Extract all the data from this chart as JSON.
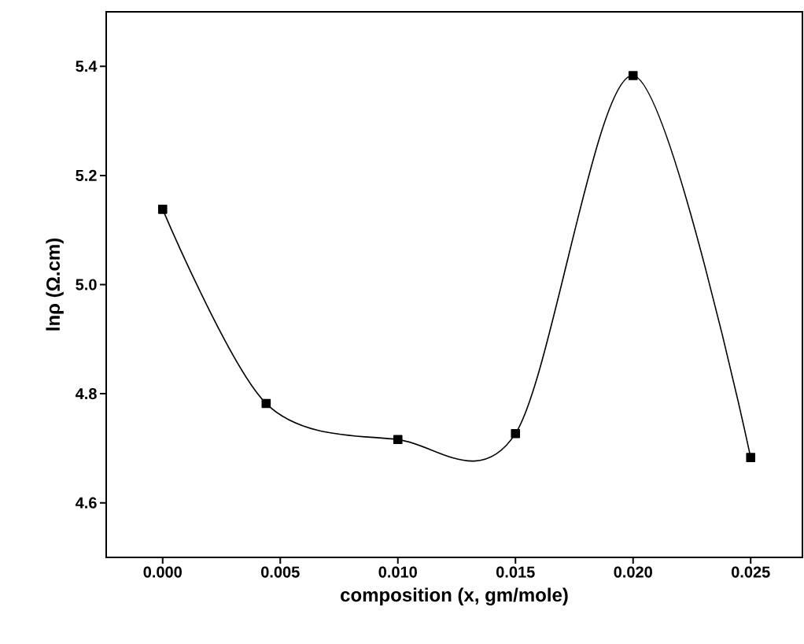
{
  "chart_data": {
    "type": "line",
    "xlabel": "composition (x, gm/mole)",
    "ylabel": "lnρ (Ω.cm)",
    "x": [
      0.0,
      0.0044,
      0.01,
      0.015,
      0.02,
      0.025
    ],
    "series": [
      {
        "color": "#000000",
        "values": [
          5.138,
          4.782,
          4.716,
          4.727,
          5.383,
          4.683
        ]
      }
    ],
    "xlim": [
      -0.0024,
      0.0272
    ],
    "ylim": [
      4.5,
      5.5
    ],
    "xticks": [
      {
        "value": 0.0,
        "label": "0.000"
      },
      {
        "value": 0.005,
        "label": "0.005"
      },
      {
        "value": 0.01,
        "label": "0.010"
      },
      {
        "value": 0.015,
        "label": "0.015"
      },
      {
        "value": 0.02,
        "label": "0.020"
      },
      {
        "value": 0.025,
        "label": "0.025"
      }
    ],
    "yticks": [
      4.6,
      4.8,
      {
        "value": 5.0,
        "label": "5.0"
      },
      5.2,
      5.4
    ],
    "marker": "square",
    "line_style": "solid"
  }
}
